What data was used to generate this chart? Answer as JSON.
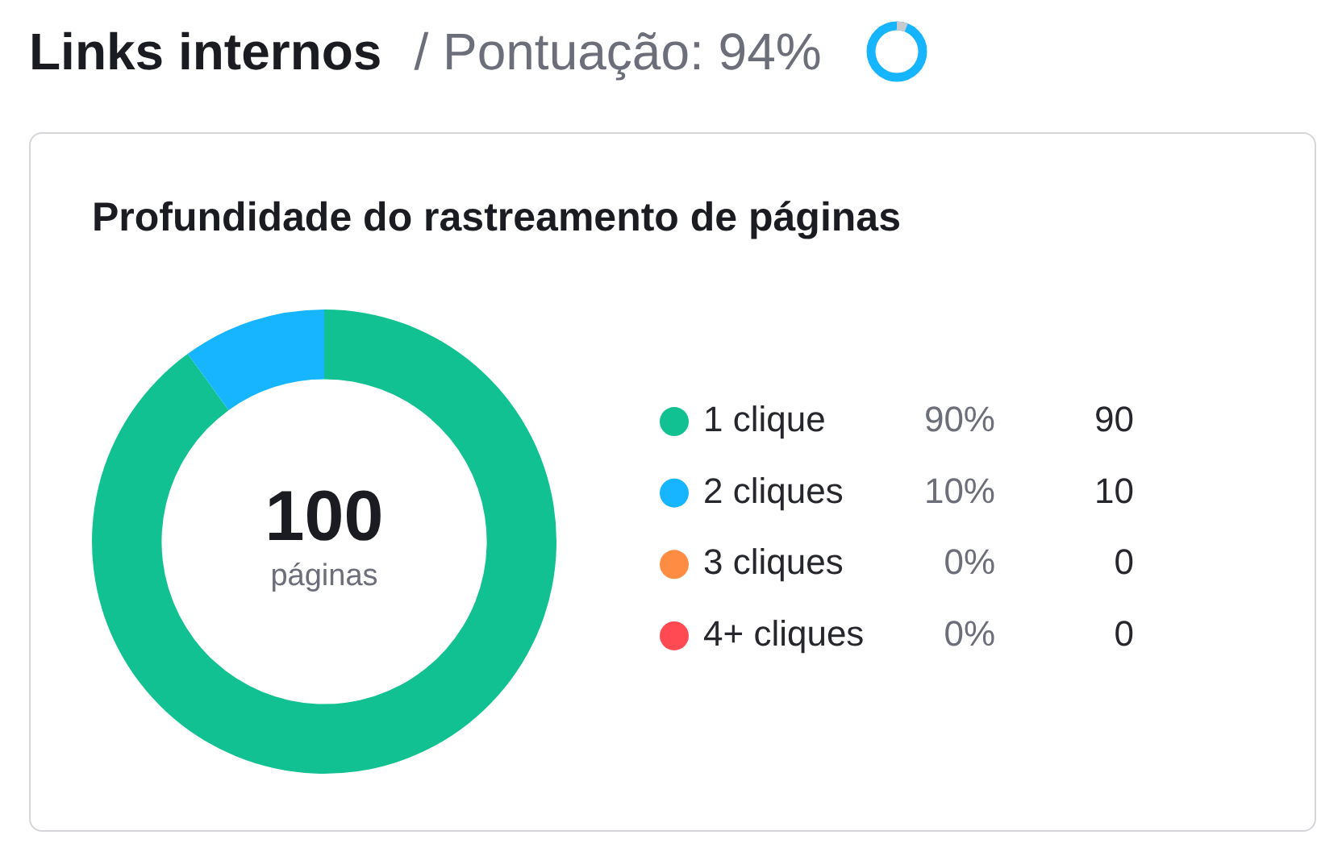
{
  "chart_data": {
    "type": "donut",
    "title": "Links internos",
    "subtitle": "/ Pontuação: 94%",
    "annotations": [
      "Profundidade do rastreamento de páginas",
      "100",
      "páginas",
      {
        "text": "90%",
        "x": "1 clique"
      },
      {
        "text": "10%",
        "x": "2 cliques"
      },
      {
        "text": "0%",
        "x": "3 cliques"
      },
      {
        "text": "0%",
        "x": "4+ cliques"
      }
    ],
    "categories": [
      "1 clique",
      "2 cliques",
      "3 cliques",
      "4+ cliques"
    ],
    "values": [
      90,
      10,
      0,
      0
    ],
    "colors": [
      "#12c191",
      "#17b5ff",
      "#ff8c43",
      "#ff4953"
    ],
    "value_labels": [
      "90",
      "10",
      "0",
      "0"
    ],
    "legend": "right"
  }
}
